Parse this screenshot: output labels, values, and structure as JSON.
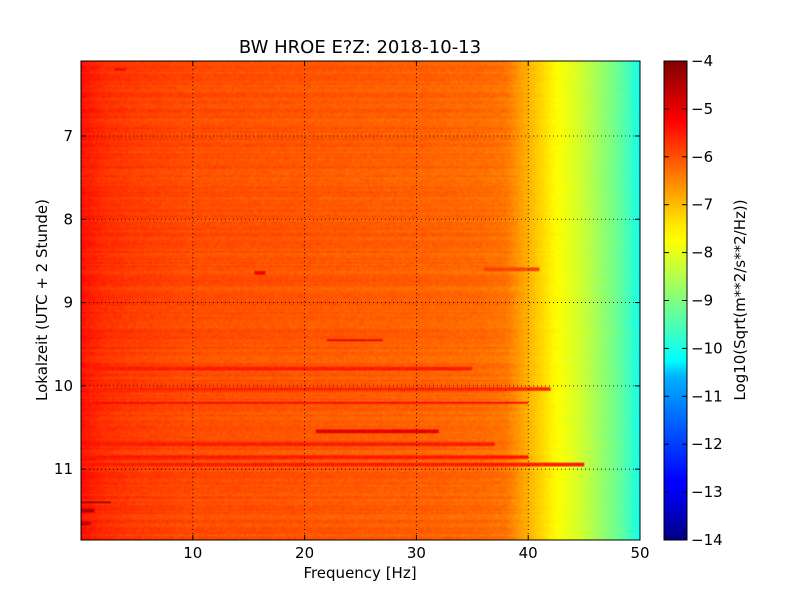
{
  "chart_data": {
    "type": "heatmap",
    "title": "BW HROE E?Z: 2018-10-13",
    "xlabel": "Frequency [Hz]",
    "ylabel": "Lokalzeit (UTC + 2 Stunde)",
    "xlim": [
      0,
      50
    ],
    "ylim": [
      11.85,
      6.1
    ],
    "y_inverted": true,
    "x_ticks": [
      10,
      20,
      30,
      40,
      50
    ],
    "x_tick_labels": [
      "10",
      "20",
      "30",
      "40",
      "50"
    ],
    "y_ticks": [
      7,
      8,
      9,
      10,
      11
    ],
    "y_tick_labels": [
      "7",
      "8",
      "9",
      "10",
      "11"
    ],
    "grid": true,
    "grid_style": "dotted",
    "colormap": "jet",
    "colorbar": {
      "label": "Log10(Sqrt(m**2/s**2/Hz))",
      "vmin": -14,
      "vmax": -4,
      "ticks": [
        -4,
        -5,
        -6,
        -7,
        -8,
        -9,
        -10,
        -11,
        -12,
        -13,
        -14
      ],
      "tick_labels": [
        "−4",
        "−5",
        "−6",
        "−7",
        "−8",
        "−9",
        "−10",
        "−11",
        "−12",
        "−13",
        "−14"
      ]
    },
    "spectral_profile": {
      "frequency_hz": [
        0,
        0.5,
        2,
        5,
        10,
        20,
        30,
        36,
        38,
        39,
        40,
        41,
        42,
        43,
        44,
        45,
        46,
        47,
        48,
        49,
        50
      ],
      "log10_amplitude": [
        -5.4,
        -5.5,
        -5.7,
        -5.85,
        -6.0,
        -6.1,
        -6.2,
        -6.3,
        -6.4,
        -6.7,
        -7.0,
        -7.3,
        -7.6,
        -7.85,
        -8.05,
        -8.3,
        -8.6,
        -8.9,
        -9.2,
        -9.6,
        -10.1
      ]
    },
    "bands": [
      {
        "time": 10.2,
        "f_start": 1,
        "f_end": 40,
        "log10_amplitude": -5.3
      },
      {
        "time": 10.55,
        "f_start": 21,
        "f_end": 32,
        "log10_amplitude": -5.0
      },
      {
        "time": 9.45,
        "f_start": 22,
        "f_end": 27,
        "log10_amplitude": -5.1
      },
      {
        "time": 10.95,
        "f_start": 1,
        "f_end": 45,
        "log10_amplitude": -5.5
      },
      {
        "time": 10.85,
        "f_start": 1,
        "f_end": 40,
        "log10_amplitude": -5.5
      },
      {
        "time": 10.7,
        "f_start": 1,
        "f_end": 37,
        "log10_amplitude": -5.5
      },
      {
        "time": 10.03,
        "f_start": 1,
        "f_end": 42,
        "log10_amplitude": -5.6
      },
      {
        "time": 9.8,
        "f_start": 1,
        "f_end": 35,
        "log10_amplitude": -5.5
      },
      {
        "time": 8.6,
        "f_start": 36,
        "f_end": 41,
        "log10_amplitude": -5.9
      },
      {
        "time": 8.65,
        "f_start": 15.5,
        "f_end": 16.5,
        "log10_amplitude": -5.2
      },
      {
        "time": 6.2,
        "f_start": 3,
        "f_end": 4,
        "log10_amplitude": -5.1
      },
      {
        "time": 11.4,
        "f_start": 0,
        "f_end": 2.7,
        "log10_amplitude": -4.4
      },
      {
        "time": 11.5,
        "f_start": 0,
        "f_end": 1.2,
        "log10_amplitude": -4.5
      },
      {
        "time": 11.65,
        "f_start": 0,
        "f_end": 0.8,
        "log10_amplitude": -4.6
      }
    ]
  }
}
